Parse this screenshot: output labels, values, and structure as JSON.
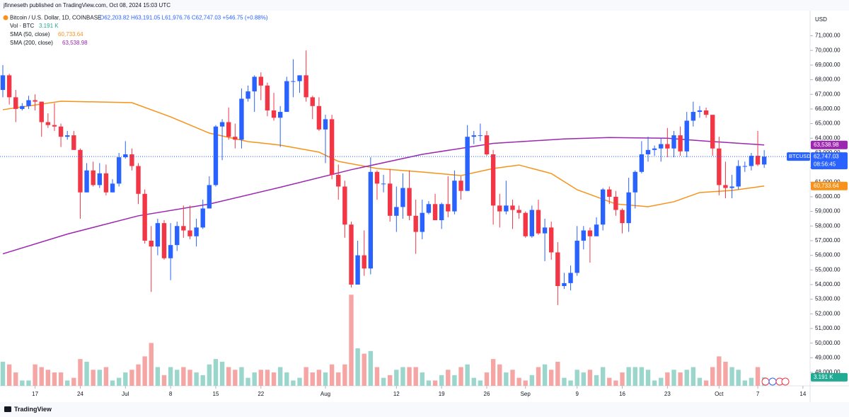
{
  "header": {
    "published": "jfinneseth published on TradingView.com, Oct 08, 2024 15:03 UTC"
  },
  "chart_data": {
    "type": "candlestick",
    "legend": {
      "symbol": "Bitcoin / U.S. Dollar, 1D, COINBASE",
      "ohlc": "O62,203.82 H63,191.05 L61,976.76 C62,747.03 +546.75 (+0.88%)"
    },
    "axis_title": "USD",
    "up_color": "#2962ff",
    "down_color": "#f23645",
    "x": [
      "2024-06-12",
      "2024-06-13",
      "2024-06-14",
      "2024-06-15",
      "2024-06-16",
      "2024-06-17",
      "2024-06-18",
      "2024-06-19",
      "2024-06-20",
      "2024-06-21",
      "2024-06-22",
      "2024-06-23",
      "2024-06-24",
      "2024-06-25",
      "2024-06-26",
      "2024-06-27",
      "2024-06-28",
      "2024-06-29",
      "2024-06-30",
      "2024-07-01",
      "2024-07-02",
      "2024-07-03",
      "2024-07-04",
      "2024-07-05",
      "2024-07-06",
      "2024-07-07",
      "2024-07-08",
      "2024-07-09",
      "2024-07-10",
      "2024-07-11",
      "2024-07-12",
      "2024-07-13",
      "2024-07-14",
      "2024-07-15",
      "2024-07-16",
      "2024-07-17",
      "2024-07-18",
      "2024-07-19",
      "2024-07-20",
      "2024-07-21",
      "2024-07-22",
      "2024-07-23",
      "2024-07-24",
      "2024-07-25",
      "2024-07-26",
      "2024-07-27",
      "2024-07-28",
      "2024-07-29",
      "2024-07-30",
      "2024-07-31",
      "2024-08-01",
      "2024-08-02",
      "2024-08-03",
      "2024-08-04",
      "2024-08-05",
      "2024-08-06",
      "2024-08-07",
      "2024-08-08",
      "2024-08-09",
      "2024-08-10",
      "2024-08-11",
      "2024-08-12",
      "2024-08-13",
      "2024-08-14",
      "2024-08-15",
      "2024-08-16",
      "2024-08-17",
      "2024-08-18",
      "2024-08-19",
      "2024-08-20",
      "2024-08-21",
      "2024-08-22",
      "2024-08-23",
      "2024-08-24",
      "2024-08-25",
      "2024-08-26",
      "2024-08-27",
      "2024-08-28",
      "2024-08-29",
      "2024-08-30",
      "2024-08-31",
      "2024-09-01",
      "2024-09-02",
      "2024-09-03",
      "2024-09-04",
      "2024-09-05",
      "2024-09-06",
      "2024-09-07",
      "2024-09-08",
      "2024-09-09",
      "2024-09-10",
      "2024-09-11",
      "2024-09-12",
      "2024-09-13",
      "2024-09-14",
      "2024-09-15",
      "2024-09-16",
      "2024-09-17",
      "2024-09-18",
      "2024-09-19",
      "2024-09-20",
      "2024-09-21",
      "2024-09-22",
      "2024-09-23",
      "2024-09-24",
      "2024-09-25",
      "2024-09-26",
      "2024-09-27",
      "2024-09-28",
      "2024-09-29",
      "2024-09-30",
      "2024-10-01",
      "2024-10-02",
      "2024-10-03",
      "2024-10-04",
      "2024-10-05",
      "2024-10-06",
      "2024-10-07",
      "2024-10-08"
    ],
    "open": [
      67300,
      68300,
      66800,
      66000,
      66200,
      66600,
      66500,
      65100,
      64900,
      64800,
      64100,
      64200,
      63200,
      60300,
      61800,
      60800,
      61600,
      60300,
      60900,
      62700,
      62900,
      62100,
      60200,
      57000,
      56600,
      58200,
      55800,
      56700,
      58000,
      57700,
      57300,
      57900,
      59200,
      60800,
      64800,
      65100,
      64100,
      63900,
      66700,
      67200,
      68200,
      67600,
      65900,
      65400,
      65800,
      67900,
      67900,
      68300,
      66800,
      66200,
      64600,
      65300,
      61500,
      60700,
      58100,
      54000,
      56000,
      55100,
      61700,
      60900,
      60900,
      58700,
      59300,
      60600,
      58700,
      57600,
      58900,
      59500,
      58400,
      59500,
      59000,
      61100,
      60400,
      64100,
      64200,
      64200,
      62900,
      59400,
      59000,
      59400,
      59100,
      58900,
      57300,
      59100,
      57500,
      57900,
      56200,
      53900,
      54100,
      54800,
      57000,
      57700,
      57300,
      58100,
      60500,
      60000,
      59100,
      58200,
      60300,
      61700,
      62900,
      63200,
      63300,
      63600,
      63300,
      64200,
      63100,
      65200,
      65800,
      65900,
      65600,
      63300,
      60800,
      60600,
      60700,
      62100,
      62100,
      62800,
      62203.82
    ],
    "high": [
      69000,
      68400,
      67300,
      66400,
      66900,
      67000,
      66500,
      65700,
      66400,
      65000,
      64500,
      64500,
      63300,
      62300,
      62400,
      62300,
      62200,
      61200,
      63000,
      63800,
      63300,
      62300,
      60500,
      58000,
      58500,
      58400,
      58200,
      58300,
      59400,
      59400,
      58500,
      59800,
      61400,
      64900,
      65300,
      66100,
      65000,
      67400,
      67600,
      68300,
      68500,
      67800,
      67100,
      66200,
      68200,
      69400,
      68300,
      70000,
      66900,
      66800,
      65600,
      65600,
      62200,
      61100,
      58300,
      57000,
      57700,
      62700,
      61800,
      61500,
      61900,
      60700,
      61600,
      61800,
      59800,
      59800,
      59700,
      60200,
      59600,
      61400,
      61800,
      61400,
      64900,
      64500,
      65000,
      64500,
      63200,
      60200,
      61100,
      59800,
      59400,
      59000,
      59400,
      59800,
      58500,
      58300,
      56900,
      54800,
      55300,
      58000,
      58000,
      57900,
      58600,
      60600,
      60700,
      60400,
      59200,
      61300,
      61800,
      63800,
      64100,
      63500,
      64000,
      64700,
      64500,
      64800,
      65800,
      66500,
      66200,
      66100,
      65600,
      64100,
      62400,
      61500,
      62500,
      62400,
      63000,
      64500,
      63191.05
    ],
    "low": [
      66800,
      66300,
      65100,
      65900,
      66000,
      65900,
      64100,
      64700,
      64500,
      63400,
      63900,
      63200,
      58500,
      60300,
      60700,
      60600,
      60100,
      60300,
      60700,
      62600,
      61800,
      59500,
      56800,
      53500,
      56000,
      55700,
      54300,
      56300,
      57200,
      57100,
      56600,
      57800,
      59200,
      60700,
      62500,
      63900,
      63300,
      63300,
      66500,
      65800,
      66600,
      65500,
      65200,
      63400,
      65800,
      66800,
      67100,
      66500,
      65300,
      64500,
      62300,
      61200,
      59800,
      57200,
      53800,
      54000,
      54600,
      54700,
      59800,
      60300,
      58300,
      57600,
      58500,
      58400,
      56100,
      57100,
      58800,
      58400,
      57800,
      58600,
      58800,
      59800,
      60400,
      63600,
      63800,
      62800,
      58100,
      57900,
      58800,
      57800,
      58500,
      57200,
      57200,
      57400,
      55600,
      55700,
      52600,
      53700,
      53600,
      54600,
      56400,
      55500,
      57300,
      57700,
      59500,
      58700,
      57500,
      57600,
      59200,
      61600,
      62400,
      62800,
      62400,
      62700,
      62700,
      62800,
      62700,
      64800,
      65400,
      65400,
      62800,
      60100,
      59900,
      59900,
      60500,
      61700,
      61800,
      62100,
      61976.76
    ],
    "close": [
      68300,
      66800,
      66000,
      66200,
      66600,
      66500,
      65100,
      64900,
      64800,
      64100,
      64200,
      63200,
      60300,
      61800,
      60800,
      61600,
      60300,
      60900,
      62700,
      62900,
      62100,
      60200,
      57000,
      56600,
      58200,
      55800,
      56700,
      58000,
      57700,
      57300,
      57900,
      59200,
      60800,
      64800,
      65100,
      64100,
      63900,
      66700,
      67200,
      68200,
      67600,
      65900,
      65400,
      65800,
      67900,
      67900,
      68300,
      66800,
      66200,
      64600,
      65300,
      61500,
      60700,
      58100,
      54000,
      56000,
      55100,
      61700,
      60900,
      60900,
      58700,
      59300,
      60600,
      58700,
      57600,
      58900,
      59500,
      58400,
      59500,
      59000,
      61100,
      60400,
      64100,
      64200,
      64200,
      62900,
      59400,
      59000,
      59400,
      59100,
      58900,
      57300,
      59100,
      57500,
      57900,
      56200,
      53900,
      54100,
      54800,
      57000,
      57700,
      57300,
      58100,
      60500,
      60000,
      59100,
      58200,
      60300,
      61700,
      62900,
      63200,
      63300,
      63600,
      63300,
      64200,
      63100,
      65200,
      65800,
      65900,
      65600,
      63300,
      60800,
      60600,
      60700,
      62100,
      62100,
      62800,
      62200,
      62747.03
    ],
    "xlim": [
      "2024-06-12",
      "2024-10-15"
    ],
    "ylim": [
      47080,
      72720
    ],
    "xticks": [
      {
        "value": "2024-06-17",
        "label": "17"
      },
      {
        "value": "2024-06-24",
        "label": "24"
      },
      {
        "value": "2024-07-01",
        "label": "Jul"
      },
      {
        "value": "2024-07-08",
        "label": "8"
      },
      {
        "value": "2024-07-15",
        "label": "15"
      },
      {
        "value": "2024-07-22",
        "label": "22"
      },
      {
        "value": "2024-08-01",
        "label": "Aug"
      },
      {
        "value": "2024-08-12",
        "label": "12"
      },
      {
        "value": "2024-08-19",
        "label": "19"
      },
      {
        "value": "2024-08-26",
        "label": "26"
      },
      {
        "value": "2024-09-01",
        "label": "Sep"
      },
      {
        "value": "2024-09-09",
        "label": "9"
      },
      {
        "value": "2024-09-16",
        "label": "16"
      },
      {
        "value": "2024-09-23",
        "label": "23"
      },
      {
        "value": "2024-10-01",
        "label": "Oct"
      },
      {
        "value": "2024-10-07",
        "label": "7"
      },
      {
        "value": "2024-10-14",
        "label": "14"
      }
    ],
    "yticks": [
      {
        "value": 48000,
        "label": "48,000.00"
      },
      {
        "value": 49000,
        "label": "49,000.00"
      },
      {
        "value": 50000,
        "label": "50,000.00"
      },
      {
        "value": 51000,
        "label": "51,000.00"
      },
      {
        "value": 52000,
        "label": "52,000.00"
      },
      {
        "value": 53000,
        "label": "53,000.00"
      },
      {
        "value": 54000,
        "label": "54,000.00"
      },
      {
        "value": 55000,
        "label": "55,000.00"
      },
      {
        "value": 56000,
        "label": "56,000.00"
      },
      {
        "value": 57000,
        "label": "57,000.00"
      },
      {
        "value": 58000,
        "label": "58,000.00"
      },
      {
        "value": 59000,
        "label": "59,000.00"
      },
      {
        "value": 60000,
        "label": "60,000.00"
      },
      {
        "value": 61000,
        "label": "61,000.00"
      },
      {
        "value": 62000,
        "label": "62,000.00"
      },
      {
        "value": 63000,
        "label": "63,000.00"
      },
      {
        "value": 64000,
        "label": "64,000.00"
      },
      {
        "value": 65000,
        "label": "65,000.00"
      },
      {
        "value": 66000,
        "label": "66,000.00"
      },
      {
        "value": 67000,
        "label": "67,000.00"
      },
      {
        "value": 68000,
        "label": "68,000.00"
      },
      {
        "value": 69000,
        "label": "69,000.00"
      },
      {
        "value": 70000,
        "label": "70,000.00"
      },
      {
        "value": 71000,
        "label": "71,000.00"
      }
    ],
    "series": [
      {
        "name": "SMA (50, close)",
        "color": "#f7931a",
        "x": [
          "2024-06-12",
          "2024-06-21",
          "2024-07-02",
          "2024-07-08",
          "2024-07-14",
          "2024-07-20",
          "2024-07-25",
          "2024-07-31",
          "2024-08-03",
          "2024-08-09",
          "2024-08-16",
          "2024-08-22",
          "2024-08-27",
          "2024-08-31",
          "2024-09-05",
          "2024-09-09",
          "2024-09-15",
          "2024-09-20",
          "2024-09-24",
          "2024-09-28",
          "2024-10-03",
          "2024-10-08"
        ],
        "values": [
          65950,
          66530,
          66430,
          65460,
          64350,
          63770,
          63530,
          63050,
          62420,
          61930,
          61690,
          61450,
          61930,
          62170,
          61590,
          60480,
          59510,
          59320,
          59660,
          60290,
          60430,
          60733.64
        ],
        "last": {
          "value": 60733.64,
          "label": "60,733.64"
        }
      },
      {
        "name": "SMA (200, close)",
        "color": "#9c27b0",
        "x": [
          "2024-06-12",
          "2024-06-22",
          "2024-07-03",
          "2024-07-14",
          "2024-07-25",
          "2024-08-05",
          "2024-08-16",
          "2024-08-27",
          "2024-09-07",
          "2024-09-14",
          "2024-09-23",
          "2024-09-29",
          "2024-10-08"
        ],
        "values": [
          56100,
          57450,
          58700,
          59500,
          60650,
          61850,
          62900,
          63650,
          63950,
          64050,
          64000,
          63800,
          63538.98
        ],
        "last": {
          "value": 63538.98,
          "label": "63,538.98"
        }
      }
    ],
    "volume": {
      "name": "Vol · BTC",
      "up_color": "#9ad6cc",
      "down_color": "#f5a6a4",
      "ylim": [
        0,
        140
      ],
      "values": [
        9,
        8,
        5,
        2,
        2,
        8,
        7,
        6,
        5,
        5,
        2,
        3,
        10,
        9,
        6,
        6,
        7,
        2,
        3,
        5,
        6,
        8,
        11,
        16,
        7,
        4,
        7,
        6,
        7,
        6,
        5,
        4,
        8,
        10,
        9,
        7,
        6,
        7,
        3,
        5,
        6,
        6,
        5,
        7,
        5,
        2,
        3,
        7,
        5,
        6,
        5,
        8,
        5,
        8,
        34,
        14,
        12,
        13,
        7,
        3,
        4,
        6,
        7,
        7,
        7,
        5,
        2,
        2,
        4,
        6,
        4,
        7,
        8,
        3,
        2,
        5,
        10,
        8,
        5,
        6,
        3,
        2,
        4,
        7,
        8,
        6,
        9,
        3,
        2,
        6,
        5,
        6,
        4,
        7,
        3,
        2,
        5,
        7,
        7,
        7,
        6,
        2,
        3,
        5,
        6,
        5,
        6,
        7,
        3,
        2,
        7,
        11,
        9,
        7,
        6,
        2,
        3,
        7,
        3.191
      ],
      "last": {
        "value": 3.191,
        "label": "3.191 K"
      }
    },
    "price_marker": {
      "symbol": "BTCUSD",
      "value": 62747.03,
      "label": "62,747.03",
      "countdown": "08:56:45",
      "color": "#2962ff"
    }
  },
  "footer": {
    "brand": "TradingView"
  }
}
